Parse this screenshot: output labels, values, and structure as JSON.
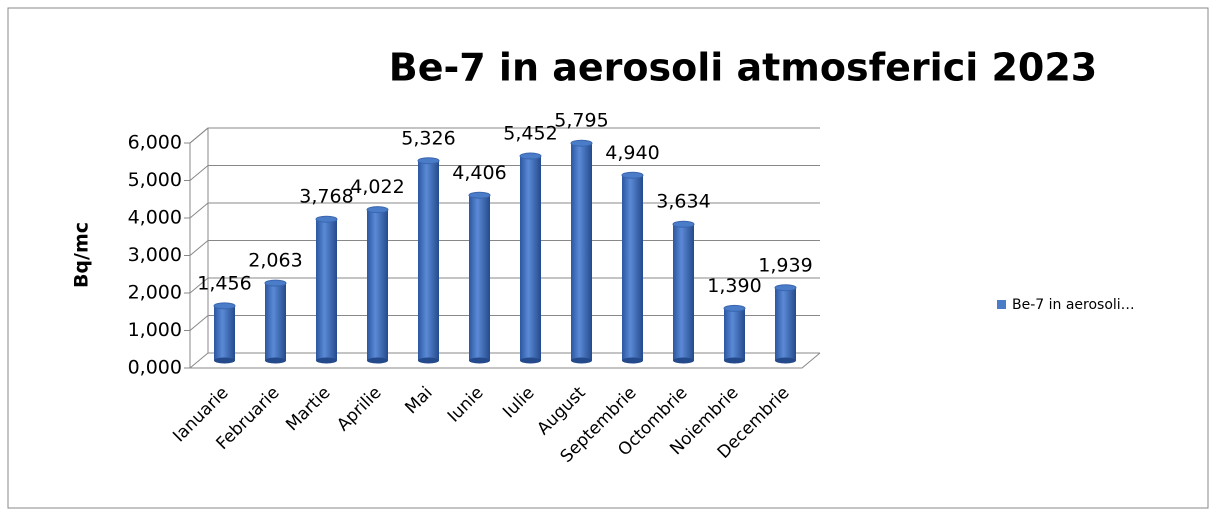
{
  "chart_data": {
    "type": "bar",
    "title": "Be-7 in aerosoli atmosferici 2023",
    "y_label": "Bq/mc",
    "categories": [
      "Ianuarie",
      "Februarie",
      "Martie",
      "Aprilie",
      "Mai",
      "Iunie",
      "Iulie",
      "August",
      "Septembrie",
      "Octombrie",
      "Noiembrie",
      "Decembrie"
    ],
    "series": [
      {
        "name": "Be-7 in aerosoli…",
        "color": "#4a7cc7",
        "values": [
          1.456,
          2.063,
          3.768,
          4.022,
          5.326,
          4.406,
          5.452,
          5.795,
          4.94,
          3.634,
          1.39,
          1.939
        ],
        "value_labels": [
          "1,456",
          "2,063",
          "3,768",
          "4,022",
          "5,326",
          "4,406",
          "5,452",
          "5,795",
          "4,940",
          "3,634",
          "1,390",
          "1,939"
        ]
      }
    ],
    "ylim": [
      0,
      6
    ],
    "yticks": [
      {
        "value": 0,
        "label": "0,000"
      },
      {
        "value": 1,
        "label": "1,000"
      },
      {
        "value": 2,
        "label": "2,000"
      },
      {
        "value": 3,
        "label": "3,000"
      },
      {
        "value": 4,
        "label": "4,000"
      },
      {
        "value": 5,
        "label": "5,000"
      },
      {
        "value": 6,
        "label": "6,000"
      }
    ],
    "grid": true,
    "legend": "right"
  }
}
